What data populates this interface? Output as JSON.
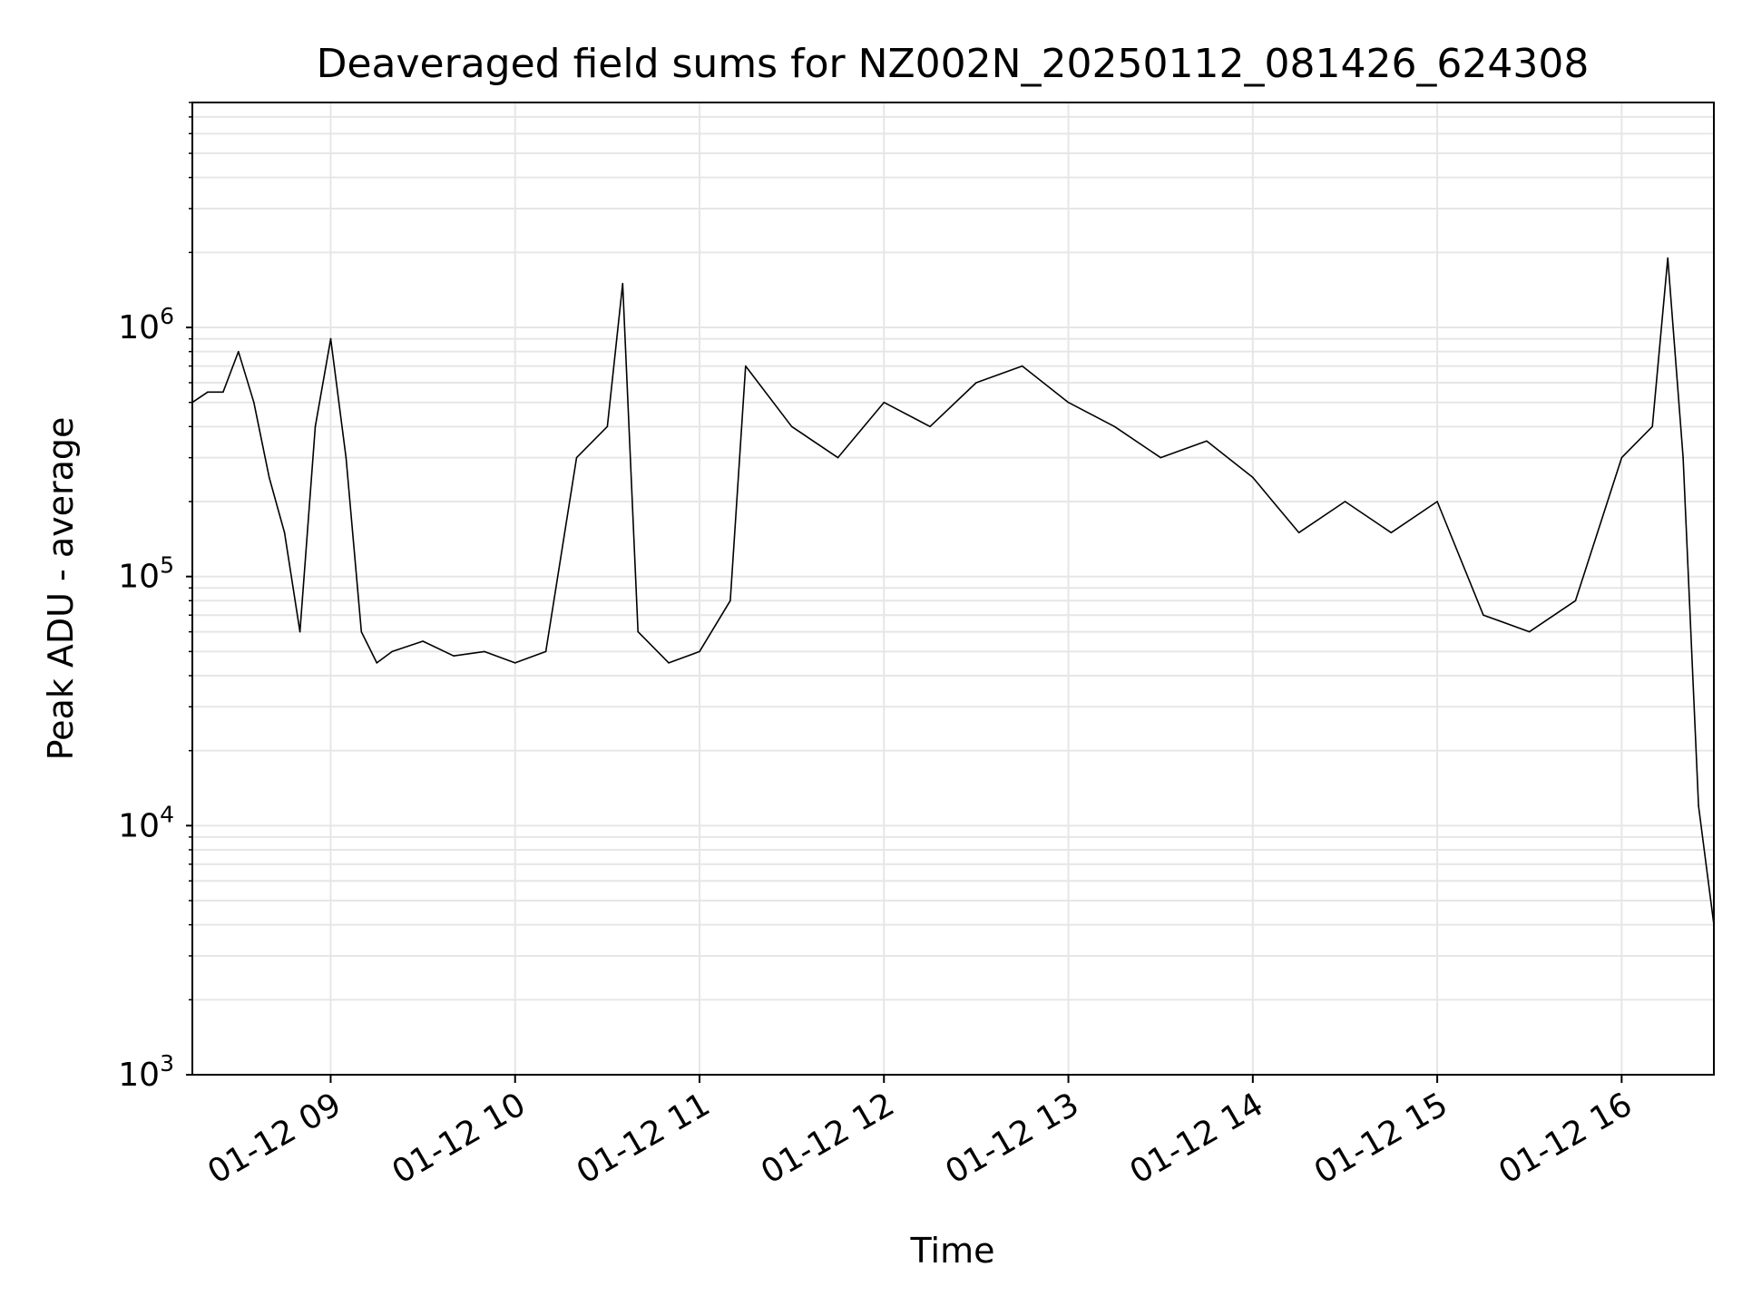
{
  "chart_data": {
    "type": "line",
    "title": "Deaveraged field sums for NZ002N_20250112_081426_624308",
    "xlabel": "Time",
    "ylabel": "Peak ADU - average",
    "yscale": "log",
    "ylim": [
      1000,
      8000000
    ],
    "xlim": [
      "01-12 08:15",
      "01-12 16:30"
    ],
    "grid": true,
    "line_color": "#000000",
    "grid_color": "#e6e6e6",
    "x_ticks": [
      "01-12 09",
      "01-12 10",
      "01-12 11",
      "01-12 12",
      "01-12 13",
      "01-12 14",
      "01-12 15",
      "01-12 16"
    ],
    "y_ticks": [
      {
        "value": 1000,
        "base": "10",
        "exp": "3"
      },
      {
        "value": 10000,
        "base": "10",
        "exp": "4"
      },
      {
        "value": 100000,
        "base": "10",
        "exp": "5"
      },
      {
        "value": 1000000,
        "base": "10",
        "exp": "6"
      }
    ],
    "series": [
      {
        "x": [
          "01-12 08:15",
          "01-12 08:20",
          "01-12 08:25",
          "01-12 08:30",
          "01-12 08:35",
          "01-12 08:40",
          "01-12 08:45",
          "01-12 08:50",
          "01-12 08:55",
          "01-12 09:00",
          "01-12 09:05",
          "01-12 09:10",
          "01-12 09:15",
          "01-12 09:20",
          "01-12 09:30",
          "01-12 09:40",
          "01-12 09:50",
          "01-12 10:00",
          "01-12 10:10",
          "01-12 10:20",
          "01-12 10:30",
          "01-12 10:35",
          "01-12 10:40",
          "01-12 10:50",
          "01-12 11:00",
          "01-12 11:10",
          "01-12 11:15",
          "01-12 11:30",
          "01-12 11:45",
          "01-12 12:00",
          "01-12 12:15",
          "01-12 12:30",
          "01-12 12:45",
          "01-12 13:00",
          "01-12 13:15",
          "01-12 13:30",
          "01-12 13:45",
          "01-12 14:00",
          "01-12 14:15",
          "01-12 14:30",
          "01-12 14:45",
          "01-12 15:00",
          "01-12 15:15",
          "01-12 15:30",
          "01-12 15:45",
          "01-12 16:00",
          "01-12 16:10",
          "01-12 16:15",
          "01-12 16:20",
          "01-12 16:25",
          "01-12 16:30"
        ],
        "y": [
          500000,
          550000,
          550000,
          800000,
          500000,
          250000,
          150000,
          60000,
          400000,
          900000,
          300000,
          60000,
          45000,
          50000,
          55000,
          48000,
          50000,
          45000,
          50000,
          300000,
          400000,
          1500000,
          60000,
          45000,
          50000,
          80000,
          700000,
          400000,
          300000,
          500000,
          400000,
          600000,
          700000,
          500000,
          400000,
          300000,
          350000,
          250000,
          150000,
          200000,
          150000,
          200000,
          70000,
          60000,
          80000,
          300000,
          400000,
          1900000,
          300000,
          12000,
          4000
        ]
      }
    ]
  }
}
